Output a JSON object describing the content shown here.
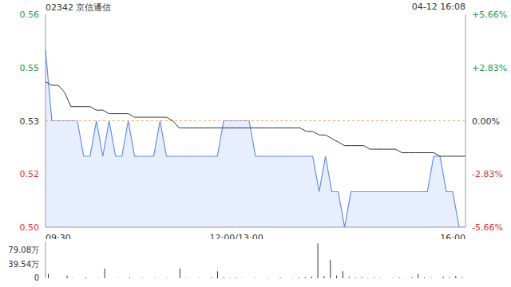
{
  "chart_data": [
    {
      "type": "line",
      "title": "02342 京信通信",
      "subtitle": "04-12 16:08",
      "categories": [
        "09:30",
        null,
        null,
        null,
        null,
        null,
        null,
        null,
        null,
        null,
        null,
        null,
        null,
        null,
        null,
        null,
        null,
        null,
        null,
        null,
        null,
        null,
        null,
        null,
        null,
        null,
        null,
        null,
        null,
        null,
        "12:00/13:00",
        null,
        null,
        null,
        null,
        null,
        null,
        null,
        null,
        null,
        null,
        null,
        null,
        null,
        null,
        null,
        null,
        null,
        null,
        null,
        null,
        null,
        null,
        null,
        null,
        null,
        null,
        null,
        null,
        null,
        null,
        null,
        null,
        null,
        null,
        null,
        "16:00"
      ],
      "ylim": [
        0.5,
        0.56
      ],
      "yticks": [
        0.56,
        {
          "value": 0.545,
          "label": "0.55"
        },
        0.53,
        {
          "value": 0.515,
          "label": "0.52"
        },
        {
          "value": 0.5,
          "label": "0.50"
        }
      ],
      "y2lim": [
        -5.66,
        5.66
      ],
      "y2ticks": [
        {
          "value": 5.66,
          "label": "+5.66%"
        },
        {
          "value": 2.83,
          "label": "+2.83%"
        },
        {
          "value": 0,
          "label": "0.00%"
        },
        {
          "value": -2.83,
          "label": "-2.83%"
        },
        {
          "value": -5.66,
          "label": "-5.66%"
        }
      ],
      "reference_line": 0.53,
      "series": [
        {
          "type": "area",
          "color": "#5b8ff9",
          "values": [
            0.55,
            0.53,
            0.53,
            0.53,
            0.53,
            0.53,
            0.52,
            0.52,
            0.53,
            0.52,
            0.53,
            0.52,
            0.52,
            0.53,
            0.52,
            0.52,
            0.52,
            0.52,
            0.53,
            0.52,
            0.52,
            0.52,
            0.52,
            0.52,
            0.52,
            0.52,
            0.52,
            0.52,
            0.53,
            0.53,
            0.53,
            0.53,
            0.53,
            0.52,
            0.52,
            0.52,
            0.52,
            0.52,
            0.52,
            0.52,
            0.52,
            0.52,
            0.52,
            0.51,
            0.52,
            0.51,
            0.51,
            0.5,
            0.51,
            0.51,
            0.51,
            0.51,
            0.51,
            0.51,
            0.51,
            0.51,
            0.51,
            0.51,
            0.51,
            0.51,
            0.51,
            0.52,
            0.52,
            0.51,
            0.51,
            0.5,
            0.5
          ]
        },
        {
          "type": "line",
          "color": "#333333",
          "values": [
            0.541,
            0.54,
            0.54,
            0.538,
            0.534,
            0.534,
            0.534,
            0.534,
            0.533,
            0.533,
            0.532,
            0.532,
            0.532,
            0.532,
            0.531,
            0.531,
            0.531,
            0.531,
            0.531,
            0.531,
            0.53,
            0.528,
            0.528,
            0.528,
            0.528,
            0.528,
            0.528,
            0.528,
            0.528,
            0.528,
            0.528,
            0.528,
            0.528,
            0.528,
            0.528,
            0.528,
            0.528,
            0.528,
            0.528,
            0.528,
            0.528,
            0.527,
            0.527,
            0.526,
            0.526,
            0.525,
            0.524,
            0.523,
            0.523,
            0.523,
            0.523,
            0.522,
            0.522,
            0.522,
            0.522,
            0.522,
            0.521,
            0.521,
            0.521,
            0.521,
            0.521,
            0.521,
            0.52,
            0.52,
            0.52,
            0.52,
            0.52
          ]
        }
      ]
    },
    {
      "type": "bar",
      "tick_labels": "y",
      "color": "#333333",
      "categories": [
        null,
        null,
        null,
        null,
        null,
        null,
        null,
        null,
        null,
        null,
        null,
        null,
        null,
        null,
        null,
        null,
        null,
        null,
        null,
        null,
        null,
        null,
        null,
        null,
        null,
        null,
        null,
        null,
        null,
        null,
        null,
        null,
        null,
        null,
        null,
        null,
        null,
        null,
        null,
        null,
        null,
        null,
        null,
        null,
        null,
        null,
        null,
        null,
        null,
        null,
        null,
        null,
        null,
        null,
        null,
        null,
        null,
        null,
        null,
        null,
        null,
        null,
        null,
        null,
        null,
        null,
        null
      ],
      "ylim": [
        0,
        105
      ],
      "yticks": [
        {
          "value": 79.08,
          "label": "79.08万"
        },
        {
          "value": 39.54,
          "label": "39.54万"
        },
        0
      ],
      "values": [
        13,
        1,
        0,
        8,
        1,
        0,
        2,
        0,
        1,
        28,
        0,
        1,
        0,
        2,
        0,
        1,
        0,
        1,
        0,
        1,
        0,
        28,
        1,
        0,
        1,
        0,
        2,
        20,
        3,
        1,
        2,
        1,
        0,
        1,
        0,
        1,
        0,
        2,
        0,
        1,
        2,
        3,
        5,
        100,
        6,
        53,
        8,
        20,
        4,
        2,
        3,
        1,
        2,
        1,
        0,
        1,
        2,
        1,
        3,
        13,
        2,
        1,
        0,
        4,
        2,
        6,
        3
      ]
    }
  ]
}
